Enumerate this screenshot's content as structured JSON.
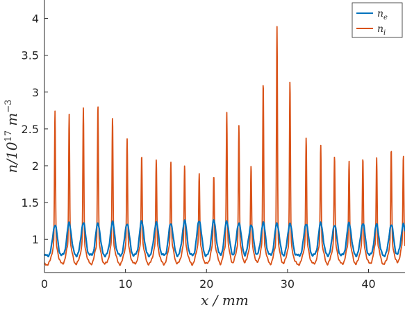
{
  "chart_data": {
    "type": "line",
    "title": "",
    "xlabel": "x / mm",
    "ylabel": "n/10^17 m^-3",
    "xlim": [
      0,
      44.5
    ],
    "ylim": [
      0.55,
      4.25
    ],
    "xticks": [
      0,
      10,
      20,
      30,
      40
    ],
    "yticks": [
      1,
      1.5,
      2,
      2.5,
      3,
      3.5,
      4
    ],
    "xtick_labels": [
      "0",
      "10",
      "20",
      "30",
      "40"
    ],
    "ytick_labels": [
      "1",
      "1.5",
      "2",
      "2.5",
      "3",
      "3.5",
      "4"
    ],
    "grid": false,
    "legend_position": "top-right",
    "period_mm": 1.78,
    "peak_x": [
      1.3,
      3.05,
      4.8,
      6.6,
      8.4,
      10.2,
      12.0,
      13.8,
      15.6,
      17.3,
      19.1,
      20.9,
      22.5,
      24.0,
      25.5,
      27.0,
      28.7,
      30.3,
      32.3,
      34.1,
      35.8,
      37.6,
      39.3,
      41.0,
      42.8,
      44.3
    ],
    "series": [
      {
        "name": "n_e",
        "label_base": "n",
        "label_sub": "e",
        "color": "#0072BD",
        "baseline_min": 0.78,
        "peak_values": [
          1.2,
          1.22,
          1.23,
          1.22,
          1.23,
          1.22,
          1.24,
          1.23,
          1.22,
          1.25,
          1.26,
          1.25,
          1.25,
          1.23,
          1.2,
          1.22,
          1.22,
          1.22,
          1.22,
          1.22,
          1.2,
          1.22,
          1.22,
          1.2,
          1.2,
          1.2
        ]
      },
      {
        "name": "n_i",
        "label_base": "n",
        "label_sub": "i",
        "color": "#D95319",
        "baseline_min": 0.66,
        "peak_values": [
          2.82,
          2.79,
          2.87,
          2.96,
          2.71,
          2.37,
          2.13,
          2.0,
          2.0,
          1.91,
          1.8,
          1.78,
          2.83,
          2.58,
          1.92,
          3.3,
          4.25,
          3.32,
          2.39,
          2.29,
          2.08,
          2.02,
          2.05,
          2.06,
          2.2,
          2.09
        ]
      }
    ]
  }
}
